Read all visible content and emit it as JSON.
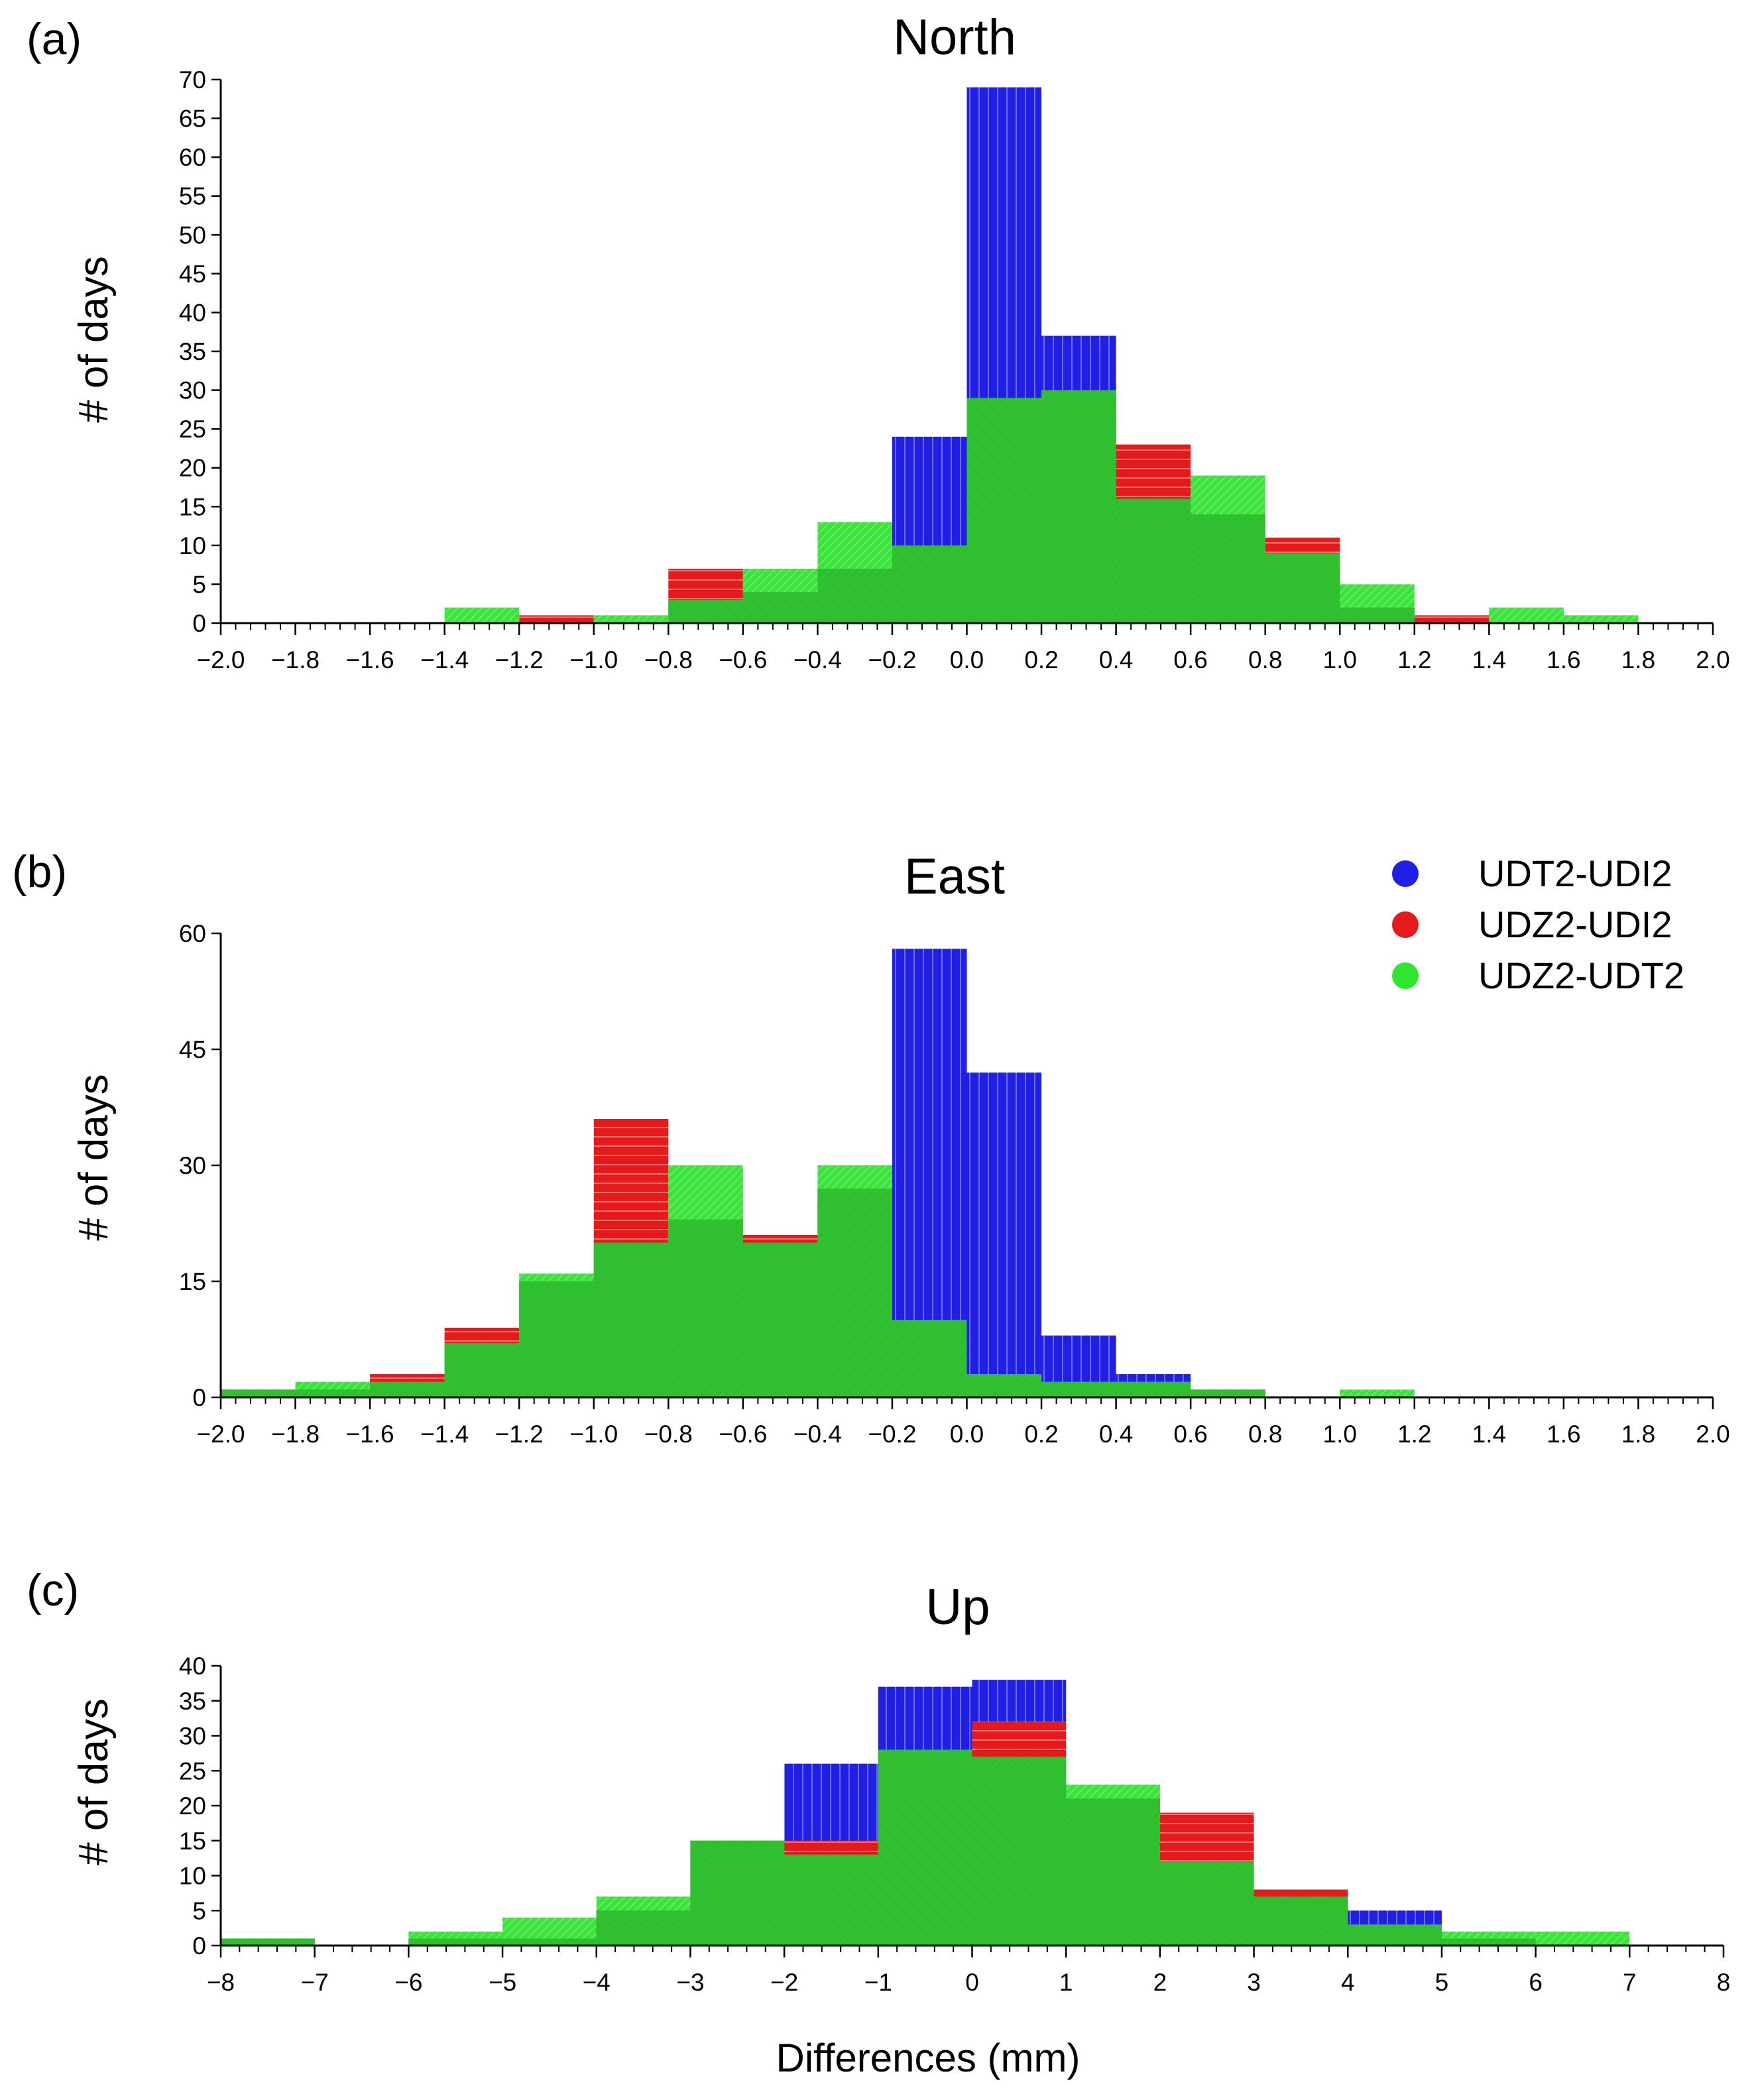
{
  "figure": {
    "x_axis_label": "Differences (mm)",
    "legend": [
      {
        "label": "UDT2-UDI2",
        "color": "#1f1fe6"
      },
      {
        "label": "UDZ2-UDI2",
        "color": "#e61a1a"
      },
      {
        "label": "UDZ2-UDT2",
        "color": "#2ee62e"
      }
    ]
  },
  "chart_data": [
    {
      "id": "a",
      "type": "bar",
      "panel_label": "(a)",
      "title": "North",
      "ylabel": "# of days",
      "xlim": [
        -2.0,
        2.0
      ],
      "ylim": [
        0,
        70
      ],
      "xticks": [
        -2.0,
        -1.8,
        -1.6,
        -1.4,
        -1.2,
        -1.0,
        -0.8,
        -0.6,
        -0.4,
        -0.2,
        0.0,
        0.2,
        0.4,
        0.6,
        0.8,
        1.0,
        1.2,
        1.4,
        1.6,
        1.8,
        2.0
      ],
      "xtick_labels": [
        "−2.0",
        "−1.8",
        "−1.6",
        "−1.4",
        "−1.2",
        "−1.0",
        "−0.8",
        "−0.6",
        "−0.4",
        "−0.2",
        "0.0",
        "0.2",
        "0.4",
        "0.6",
        "0.8",
        "1.0",
        "1.2",
        "1.4",
        "1.6",
        "1.8",
        "2.0"
      ],
      "yticks": [
        0,
        5,
        10,
        15,
        20,
        25,
        30,
        35,
        40,
        45,
        50,
        55,
        60,
        65,
        70
      ],
      "bin_edges": [
        -2.0,
        -1.8,
        -1.6,
        -1.4,
        -1.2,
        -1.0,
        -0.8,
        -0.6,
        -0.4,
        -0.2,
        0.0,
        0.2,
        0.4,
        0.6,
        0.8,
        1.0,
        1.2,
        1.4,
        1.6,
        1.8,
        2.0
      ],
      "series": [
        {
          "name": "UDT2-UDI2",
          "values": [
            0,
            0,
            0,
            0,
            0,
            0,
            0,
            4,
            7,
            24,
            69,
            37,
            9,
            1,
            0,
            0,
            0,
            0,
            0,
            0
          ]
        },
        {
          "name": "UDZ2-UDI2",
          "values": [
            0,
            0,
            0,
            0,
            1,
            0,
            7,
            3,
            6,
            10,
            20,
            30,
            23,
            14,
            11,
            2,
            1,
            0,
            0,
            0
          ]
        },
        {
          "name": "UDZ2-UDT2",
          "values": [
            0,
            0,
            0,
            2,
            0,
            1,
            3,
            7,
            13,
            10,
            29,
            30,
            16,
            19,
            9,
            5,
            0,
            2,
            1,
            0
          ]
        }
      ]
    },
    {
      "id": "b",
      "type": "bar",
      "panel_label": "(b)",
      "title": "East",
      "ylabel": "# of days",
      "xlim": [
        -2.0,
        2.0
      ],
      "ylim": [
        0,
        60
      ],
      "xticks": [
        -2.0,
        -1.8,
        -1.6,
        -1.4,
        -1.2,
        -1.0,
        -0.8,
        -0.6,
        -0.4,
        -0.2,
        0.0,
        0.2,
        0.4,
        0.6,
        0.8,
        1.0,
        1.2,
        1.4,
        1.6,
        1.8,
        2.0
      ],
      "xtick_labels": [
        "−2.0",
        "−1.8",
        "−1.6",
        "−1.4",
        "−1.2",
        "−1.0",
        "−0.8",
        "−0.6",
        "−0.4",
        "−0.2",
        "0.0",
        "0.2",
        "0.4",
        "0.6",
        "0.8",
        "1.0",
        "1.2",
        "1.4",
        "1.6",
        "1.8",
        "2.0"
      ],
      "yticks": [
        0,
        15,
        30,
        45,
        60
      ],
      "bin_edges": [
        -2.0,
        -1.8,
        -1.6,
        -1.4,
        -1.2,
        -1.0,
        -0.8,
        -0.6,
        -0.4,
        -0.2,
        0.0,
        0.2,
        0.4,
        0.6,
        0.8,
        1.0,
        1.2,
        1.4,
        1.6,
        1.8,
        2.0
      ],
      "series": [
        {
          "name": "UDT2-UDI2",
          "values": [
            0,
            0,
            0,
            0,
            0,
            0,
            2,
            7,
            27,
            58,
            42,
            8,
            3,
            0,
            0,
            0,
            0,
            0,
            0,
            0
          ]
        },
        {
          "name": "UDZ2-UDI2",
          "values": [
            1,
            1,
            3,
            9,
            15,
            36,
            23,
            21,
            25,
            7,
            3,
            2,
            1,
            1,
            0,
            0,
            0,
            0,
            0,
            0
          ]
        },
        {
          "name": "UDZ2-UDT2",
          "values": [
            1,
            2,
            2,
            7,
            16,
            20,
            30,
            20,
            30,
            10,
            3,
            2,
            2,
            1,
            0,
            1,
            0,
            0,
            0,
            0
          ]
        }
      ]
    },
    {
      "id": "c",
      "type": "bar",
      "panel_label": "(c)",
      "title": "Up",
      "ylabel": "# of days",
      "xlim": [
        -8,
        8
      ],
      "ylim": [
        0,
        40
      ],
      "xticks": [
        -8,
        -7,
        -6,
        -5,
        -4,
        -3,
        -2,
        -1,
        0,
        1,
        2,
        3,
        4,
        5,
        6,
        7,
        8
      ],
      "xtick_labels": [
        "−8",
        "−7",
        "−6",
        "−5",
        "−4",
        "−3",
        "−2",
        "−1",
        "0",
        "1",
        "2",
        "3",
        "4",
        "5",
        "6",
        "7",
        "8"
      ],
      "yticks": [
        0,
        5,
        10,
        15,
        20,
        25,
        30,
        35,
        40
      ],
      "bin_edges": [
        -8,
        -7,
        -6,
        -5,
        -4,
        -3,
        -2,
        -1,
        0,
        1,
        2,
        3,
        4,
        5,
        6,
        7,
        8
      ],
      "series": [
        {
          "name": "UDT2-UDI2",
          "values": [
            0,
            0,
            0,
            1,
            5,
            7,
            26,
            37,
            38,
            21,
            6,
            8,
            5,
            1,
            0,
            0
          ]
        },
        {
          "name": "UDZ2-UDI2",
          "values": [
            1,
            0,
            1,
            1,
            5,
            15,
            15,
            27,
            32,
            21,
            19,
            8,
            3,
            1,
            0,
            0
          ]
        },
        {
          "name": "UDZ2-UDT2",
          "values": [
            1,
            0,
            2,
            4,
            7,
            15,
            13,
            28,
            27,
            23,
            12,
            7,
            3,
            2,
            2,
            0
          ]
        }
      ]
    }
  ]
}
